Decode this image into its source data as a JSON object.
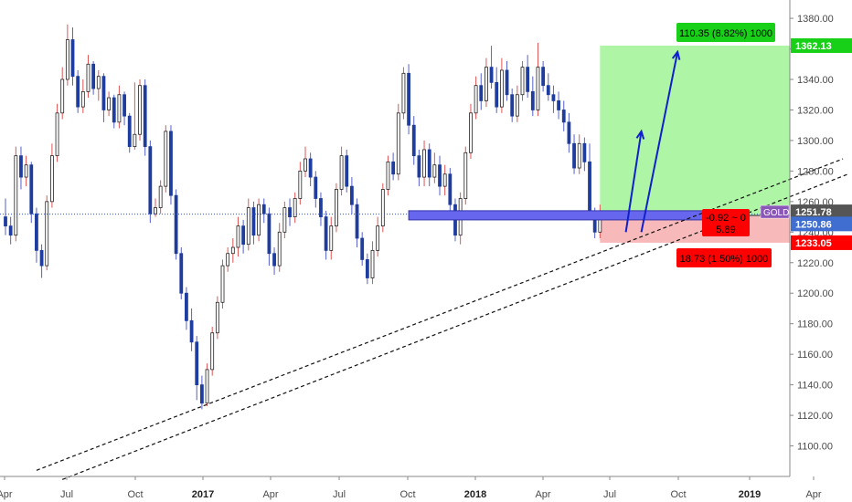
{
  "chart_data": {
    "type": "candlestick",
    "symbol": "GOLD",
    "colors": {
      "up": "#ffffff",
      "up_stroke": "#222222",
      "down": "#1f3d9e",
      "wick_up": "#e05555",
      "wick_down": "#5560cc",
      "profit_zone": "#aef5a6",
      "loss_zone": "#f7b9b9",
      "support_box": "#6666ee",
      "arrow": "#1020cc",
      "current_line": "#3050d0",
      "badge_green": "#18d018",
      "badge_red": "#ff0000",
      "label_blue": "#3f6ed0",
      "label_gray": "#555555",
      "label_purple": "#8a56b8"
    },
    "y_range": [
      1080,
      1392
    ],
    "y_ticks": [
      "1380.00",
      "1360.00",
      "1340.00",
      "1320.00",
      "1300.00",
      "1280.00",
      "1260.00",
      "1240.00",
      "1220.00",
      "1200.00",
      "1180.00",
      "1160.00",
      "1140.00",
      "1120.00",
      "1100.00"
    ],
    "x_ticks": [
      {
        "label": "Apr",
        "x": 5,
        "bold": false
      },
      {
        "label": "Jul",
        "x": 73,
        "bold": false
      },
      {
        "label": "Oct",
        "x": 148,
        "bold": false
      },
      {
        "label": "2017",
        "x": 222,
        "bold": true
      },
      {
        "label": "Apr",
        "x": 296,
        "bold": false
      },
      {
        "label": "Jul",
        "x": 371,
        "bold": false
      },
      {
        "label": "Oct",
        "x": 446,
        "bold": false
      },
      {
        "label": "2018",
        "x": 520,
        "bold": true
      },
      {
        "label": "Apr",
        "x": 594,
        "bold": false
      },
      {
        "label": "Jul",
        "x": 667,
        "bold": false
      },
      {
        "label": "Oct",
        "x": 742,
        "bold": false
      },
      {
        "label": "2019",
        "x": 820,
        "bold": true
      },
      {
        "label": "Apr",
        "x": 890,
        "bold": false
      }
    ],
    "x_tick_labels": [
      "Apr",
      "Jul",
      "Oct",
      "2017",
      "Apr",
      "Jul",
      "Oct",
      "2018",
      "Apr",
      "Jul",
      "Oct",
      "2019",
      "Apr"
    ],
    "candles": [
      [
        1250,
        1244,
        1262,
        1238
      ],
      [
        1244,
        1238,
        1250,
        1232
      ],
      [
        1238,
        1290,
        1296,
        1234
      ],
      [
        1290,
        1276,
        1296,
        1268
      ],
      [
        1276,
        1284,
        1290,
        1270
      ],
      [
        1284,
        1252,
        1286,
        1246
      ],
      [
        1252,
        1228,
        1256,
        1220
      ],
      [
        1228,
        1218,
        1232,
        1210
      ],
      [
        1218,
        1260,
        1264,
        1215
      ],
      [
        1260,
        1290,
        1298,
        1256
      ],
      [
        1290,
        1318,
        1324,
        1286
      ],
      [
        1318,
        1340,
        1348,
        1314
      ],
      [
        1340,
        1366,
        1376,
        1336
      ],
      [
        1366,
        1342,
        1374,
        1336
      ],
      [
        1342,
        1322,
        1346,
        1318
      ],
      [
        1322,
        1332,
        1340,
        1318
      ],
      [
        1332,
        1350,
        1356,
        1328
      ],
      [
        1350,
        1334,
        1352,
        1330
      ],
      [
        1334,
        1342,
        1346,
        1326
      ],
      [
        1342,
        1320,
        1344,
        1312
      ],
      [
        1320,
        1328,
        1332,
        1316
      ],
      [
        1328,
        1312,
        1330,
        1308
      ],
      [
        1312,
        1330,
        1336,
        1308
      ],
      [
        1330,
        1316,
        1332,
        1310
      ],
      [
        1316,
        1296,
        1318,
        1292
      ],
      [
        1296,
        1304,
        1338,
        1294
      ],
      [
        1304,
        1336,
        1340,
        1300
      ],
      [
        1336,
        1296,
        1340,
        1290
      ],
      [
        1296,
        1252,
        1300,
        1246
      ],
      [
        1252,
        1256,
        1262,
        1250
      ],
      [
        1256,
        1270,
        1274,
        1252
      ],
      [
        1270,
        1306,
        1310,
        1266
      ],
      [
        1306,
        1264,
        1310,
        1258
      ],
      [
        1264,
        1226,
        1268,
        1222
      ],
      [
        1226,
        1200,
        1230,
        1196
      ],
      [
        1200,
        1182,
        1204,
        1176
      ],
      [
        1182,
        1168,
        1190,
        1162
      ],
      [
        1168,
        1140,
        1172,
        1130
      ],
      [
        1140,
        1128,
        1146,
        1124
      ],
      [
        1128,
        1150,
        1154,
        1126
      ],
      [
        1150,
        1174,
        1178,
        1146
      ],
      [
        1174,
        1194,
        1198,
        1170
      ],
      [
        1194,
        1218,
        1222,
        1190
      ],
      [
        1218,
        1226,
        1230,
        1214
      ],
      [
        1226,
        1230,
        1236,
        1220
      ],
      [
        1230,
        1244,
        1250,
        1224
      ],
      [
        1244,
        1232,
        1248,
        1226
      ],
      [
        1232,
        1256,
        1262,
        1228
      ],
      [
        1256,
        1238,
        1260,
        1232
      ],
      [
        1238,
        1258,
        1262,
        1234
      ],
      [
        1258,
        1252,
        1262,
        1246
      ],
      [
        1252,
        1226,
        1256,
        1218
      ],
      [
        1226,
        1218,
        1230,
        1212
      ],
      [
        1218,
        1240,
        1246,
        1214
      ],
      [
        1240,
        1256,
        1260,
        1236
      ],
      [
        1256,
        1250,
        1262,
        1244
      ],
      [
        1250,
        1262,
        1266,
        1246
      ],
      [
        1262,
        1280,
        1286,
        1258
      ],
      [
        1280,
        1288,
        1296,
        1276
      ],
      [
        1288,
        1276,
        1292,
        1270
      ],
      [
        1276,
        1262,
        1280,
        1256
      ],
      [
        1262,
        1250,
        1266,
        1244
      ],
      [
        1250,
        1228,
        1254,
        1222
      ],
      [
        1228,
        1244,
        1250,
        1222
      ],
      [
        1244,
        1268,
        1272,
        1240
      ],
      [
        1268,
        1290,
        1296,
        1264
      ],
      [
        1290,
        1270,
        1294,
        1266
      ],
      [
        1270,
        1258,
        1276,
        1252
      ],
      [
        1258,
        1236,
        1262,
        1230
      ],
      [
        1236,
        1222,
        1240,
        1218
      ],
      [
        1222,
        1210,
        1226,
        1206
      ],
      [
        1210,
        1228,
        1234,
        1206
      ],
      [
        1228,
        1244,
        1250,
        1224
      ],
      [
        1244,
        1268,
        1272,
        1240
      ],
      [
        1268,
        1286,
        1290,
        1264
      ],
      [
        1286,
        1278,
        1292,
        1274
      ],
      [
        1278,
        1318,
        1324,
        1274
      ],
      [
        1318,
        1344,
        1348,
        1314
      ],
      [
        1344,
        1310,
        1350,
        1304
      ],
      [
        1310,
        1290,
        1316,
        1284
      ],
      [
        1290,
        1276,
        1294,
        1270
      ],
      [
        1276,
        1294,
        1300,
        1270
      ],
      [
        1294,
        1276,
        1298,
        1270
      ],
      [
        1276,
        1284,
        1292,
        1272
      ],
      [
        1284,
        1270,
        1290,
        1264
      ],
      [
        1270,
        1278,
        1284,
        1264
      ],
      [
        1278,
        1258,
        1282,
        1250
      ],
      [
        1258,
        1238,
        1262,
        1234
      ],
      [
        1238,
        1262,
        1266,
        1232
      ],
      [
        1262,
        1292,
        1296,
        1258
      ],
      [
        1292,
        1318,
        1324,
        1288
      ],
      [
        1318,
        1336,
        1342,
        1314
      ],
      [
        1336,
        1326,
        1344,
        1320
      ],
      [
        1326,
        1348,
        1354,
        1322
      ],
      [
        1348,
        1338,
        1362,
        1334
      ],
      [
        1338,
        1322,
        1348,
        1318
      ],
      [
        1322,
        1346,
        1354,
        1318
      ],
      [
        1346,
        1330,
        1352,
        1326
      ],
      [
        1330,
        1316,
        1334,
        1312
      ],
      [
        1316,
        1330,
        1336,
        1312
      ],
      [
        1330,
        1348,
        1352,
        1326
      ],
      [
        1348,
        1332,
        1356,
        1328
      ],
      [
        1332,
        1320,
        1342,
        1316
      ],
      [
        1320,
        1348,
        1364,
        1316
      ],
      [
        1348,
        1336,
        1352,
        1332
      ],
      [
        1336,
        1330,
        1344,
        1326
      ],
      [
        1330,
        1326,
        1336,
        1318
      ],
      [
        1326,
        1320,
        1332,
        1314
      ],
      [
        1320,
        1312,
        1326,
        1306
      ],
      [
        1312,
        1298,
        1318,
        1292
      ],
      [
        1298,
        1282,
        1304,
        1278
      ],
      [
        1282,
        1298,
        1304,
        1278
      ],
      [
        1298,
        1286,
        1302,
        1280
      ],
      [
        1286,
        1252,
        1298,
        1248
      ],
      [
        1252,
        1240,
        1256,
        1236
      ],
      [
        1240,
        1251.78,
        1258,
        1236
      ]
    ],
    "current_price": 1251.78,
    "current_price_label": "1251.78",
    "symbol_label": "GOLD",
    "price_labels": {
      "entry": "1250.86",
      "target": "1362.13",
      "stop": "1233.05"
    },
    "position": {
      "entry": 1250.86,
      "target": 1362.13,
      "stop": 1233.05,
      "start_bar": 115,
      "end_bar": 155
    },
    "support_zone": {
      "low": 1248,
      "high": 1254,
      "start_bar": 78,
      "end_bar": 138
    },
    "trendlines": [
      {
        "from": {
          "bar": 6,
          "price": 1084
        },
        "to": {
          "bar": 162,
          "price": 1288
        }
      },
      {
        "from": {
          "bar": 11,
          "price": 1078
        },
        "to": {
          "bar": 163,
          "price": 1278
        }
      }
    ],
    "arrows": [
      {
        "from": {
          "bar": 120,
          "price": 1240
        },
        "to": {
          "bar": 123,
          "price": 1306
        }
      },
      {
        "from": {
          "bar": 123,
          "price": 1240
        },
        "to": {
          "bar": 130,
          "price": 1358
        }
      }
    ],
    "annotations": {
      "target_text": "110.35 (8.82%) 1000",
      "stop_text": "18.73 (1.50%) 1000",
      "mid_line1": "-0.92 ~ 0",
      "mid_line2": "5.89"
    }
  }
}
